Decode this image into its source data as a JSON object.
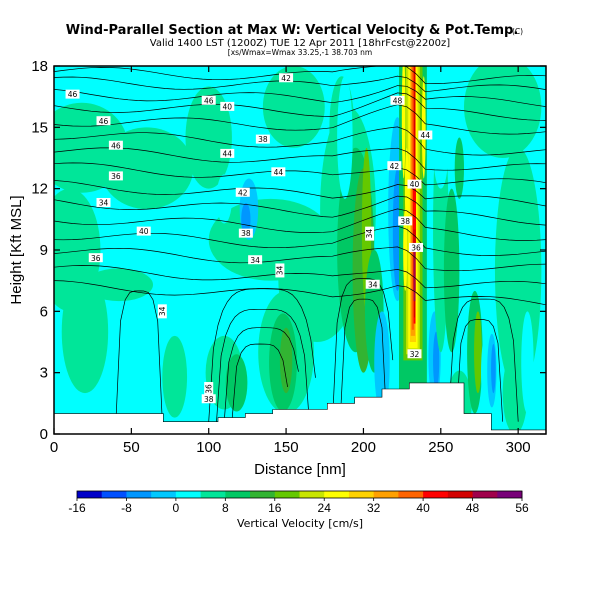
{
  "chart_data": {
    "type": "heatmap",
    "title": "Wind-Parallel Section at Max W: Vertical Velocity & Pot.Temp.",
    "title_mark": "(C)",
    "subtitle": "Valid 1400 LST (1200Z) TUE 12 Apr 2011 [18hrFcst@2200z]",
    "subtitle2": "[xs/Wmax=Wmax 33.25,-1 38.703 nm",
    "xlabel": "Distance [nm]",
    "ylabel": "Height [Kft MSL]",
    "xlim": [
      0,
      318
    ],
    "ylim": [
      0,
      18
    ],
    "xticks": [
      0,
      50,
      100,
      150,
      200,
      250,
      300
    ],
    "yticks": [
      0,
      3,
      6,
      9,
      12,
      15,
      18
    ],
    "colorbar": {
      "label": "Vertical Velocity [cm/s]",
      "ticks": [
        -16,
        -8,
        0,
        8,
        16,
        24,
        32,
        40,
        48,
        56
      ],
      "colors": [
        "#0000c8",
        "#0050ff",
        "#0096ff",
        "#00c8ff",
        "#00ffff",
        "#00e699",
        "#00c864",
        "#32b432",
        "#64c800",
        "#c8e600",
        "#ffff00",
        "#ffd200",
        "#ffa000",
        "#ff6400",
        "#ff0000",
        "#d20000",
        "#a0004b",
        "#780078"
      ]
    },
    "velocity_features": [
      {
        "label": "updraft",
        "x": 232,
        "y_range": [
          2,
          18
        ],
        "w_max": 52
      },
      {
        "label": "downdraft",
        "x": 222,
        "y_range": [
          6,
          12
        ],
        "w_min": -14
      },
      {
        "label": "downdraft",
        "x": 245,
        "y_range": [
          3,
          7
        ],
        "w_min": -12
      },
      {
        "label": "downdraft",
        "x": 125,
        "y_range": [
          10,
          12
        ],
        "w_min": -6
      },
      {
        "label": "updraft",
        "x": 195,
        "y_range": [
          4,
          12
        ],
        "w_max": 14
      },
      {
        "label": "updraft",
        "x": 150,
        "y_range": [
          2,
          6
        ],
        "w_max": 10
      }
    ],
    "theta_contour_labels": [
      "46",
      "46",
      "46",
      "44",
      "42",
      "40",
      "38",
      "36",
      "34",
      "44",
      "42",
      "40",
      "38",
      "36",
      "34",
      "48",
      "44",
      "42",
      "40",
      "38",
      "36",
      "34",
      "32",
      "46",
      "38"
    ],
    "terrain_height_kft": [
      1.0,
      1.0,
      1.0,
      1.0,
      0.6,
      0.6,
      0.8,
      1.0,
      1.2,
      1.2,
      1.5,
      1.8,
      2.2,
      2.5,
      2.5,
      1.0,
      0.2,
      0.2,
      0.2
    ]
  }
}
